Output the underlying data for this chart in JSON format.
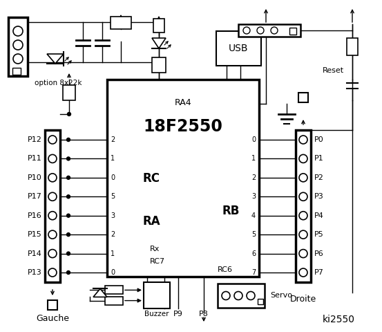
{
  "bg_color": "#ffffff",
  "title": "ki2550",
  "chip_label": "18F2550",
  "chip_sublabel": "RA4",
  "rc_pins": [
    "2",
    "1",
    "0",
    "5",
    "3",
    "2",
    "1",
    "0"
  ],
  "rc_label": "RC",
  "ra_label": "RA",
  "rb_pins": [
    "0",
    "1",
    "2",
    "3",
    "4",
    "5",
    "6",
    "7"
  ],
  "rb_label": "RB",
  "left_labels": [
    "P12",
    "P11",
    "P10",
    "P17",
    "P16",
    "P15",
    "P14",
    "P13"
  ],
  "right_labels": [
    "P0",
    "P1",
    "P2",
    "P3",
    "P4",
    "P5",
    "P6",
    "P7"
  ],
  "usb_label": "USB",
  "reset_label": "Reset",
  "option_label": "option 8x22k",
  "rx_label": "Rx",
  "rc7_label": "RC7",
  "rc6_label": "RC6",
  "gauche_label": "Gauche",
  "droite_label": "Droite",
  "buzzer_label": "Buzzer",
  "servo_label": "Servo",
  "p9_label": "P9",
  "p8_label": "P8"
}
